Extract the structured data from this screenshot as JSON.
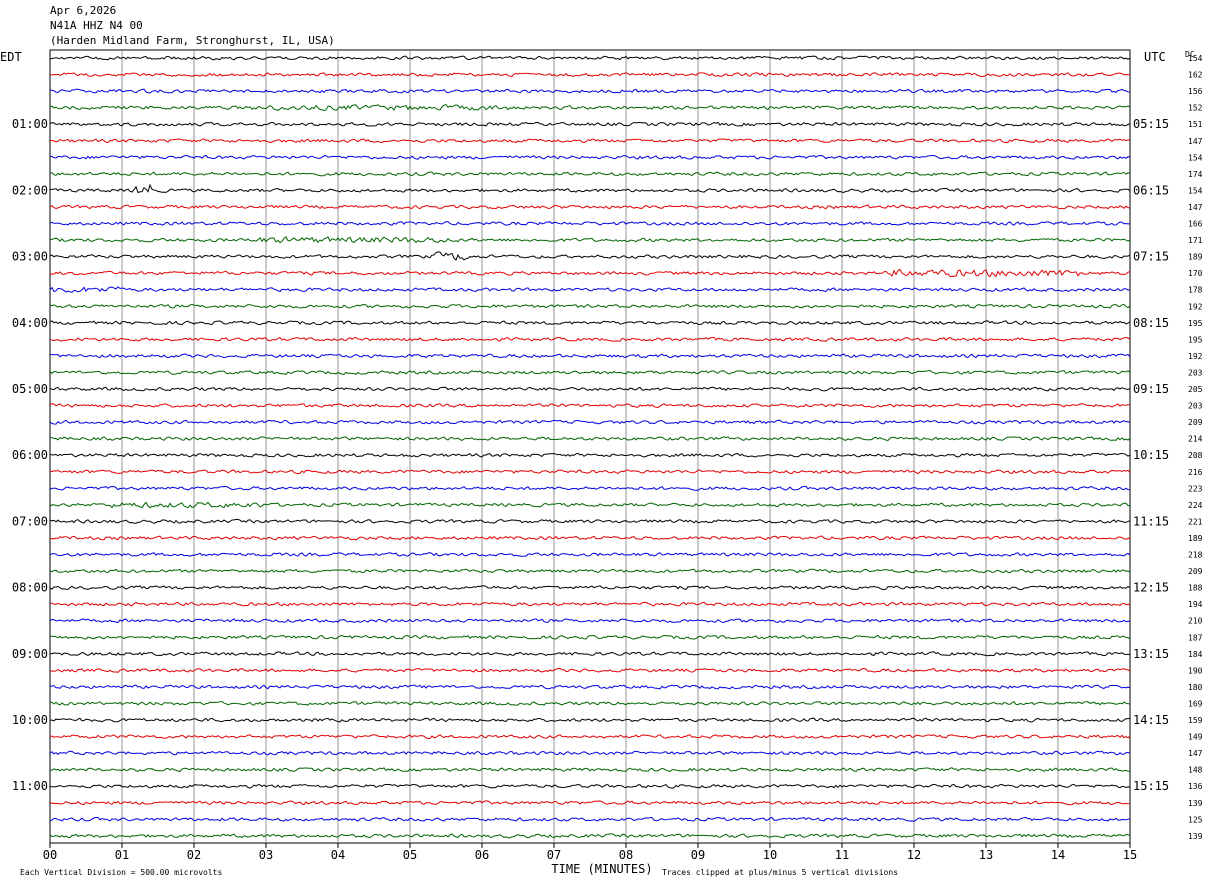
{
  "header": {
    "date": "Apr 6,2026",
    "station": "N41A HHZ N4 00",
    "location": "(Harden Midland Farm, Stronghurst, IL, USA)"
  },
  "chart_data": {
    "type": "line",
    "title": "N41A HHZ N4 00",
    "left_axis_label": "EDT",
    "right_axis_label": "UTC",
    "dc_label": "DC",
    "xlabel": "TIME (MINUTES)",
    "xlim": [
      0,
      15
    ],
    "x_ticks": [
      "00",
      "01",
      "02",
      "03",
      "04",
      "05",
      "06",
      "07",
      "08",
      "09",
      "10",
      "11",
      "12",
      "13",
      "14",
      "15"
    ],
    "edt_labels": [
      "01:00",
      "02:00",
      "03:00",
      "04:00",
      "05:00",
      "06:00",
      "07:00",
      "08:00",
      "09:00",
      "10:00",
      "11:00"
    ],
    "utc_labels": [
      "05:15",
      "06:15",
      "07:15",
      "08:15",
      "09:15",
      "10:15",
      "11:15",
      "12:15",
      "13:15",
      "14:15",
      "15:15"
    ],
    "trace_colors": [
      "#000000",
      "#e00000",
      "#0000e0",
      "#006400"
    ],
    "trace_count": 48,
    "dc_offsets": [
      154,
      162,
      156,
      152,
      151,
      147,
      154,
      174,
      154,
      147,
      166,
      171,
      189,
      170,
      178,
      192,
      195,
      195,
      192,
      203,
      205,
      203,
      209,
      214,
      208,
      216,
      223,
      224,
      221,
      189,
      218,
      209,
      188,
      194,
      210,
      187,
      184,
      190,
      180,
      169,
      159,
      149,
      147,
      148,
      136,
      139,
      125,
      139
    ],
    "scale_note": "Each Vertical Division =  500.00 microvolts",
    "clip_note": "Traces clipped at plus/minus 5 vertical divisions",
    "grid": true
  }
}
